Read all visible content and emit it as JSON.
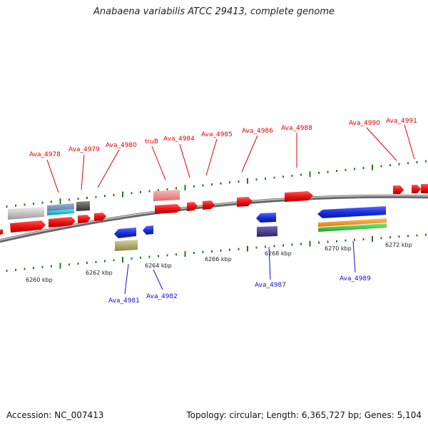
{
  "title": "Anabaena variabilis ATCC 29413, complete genome",
  "footer": {
    "accession": "Accession: NC_007413",
    "summary": "Topology: circular; Length: 6,365,727 bp; Genes: 5,104"
  },
  "colors": {
    "forward_gene": "#ee1010",
    "reverse_gene": "#1830e0",
    "forward_label": "#e00000",
    "reverse_label": "#1010c8",
    "tick": "#1f7a1f",
    "backbone": "#8a8a8a"
  },
  "ticks": [
    {
      "label": "6260 kbp"
    },
    {
      "label": "6262 kbp"
    },
    {
      "label": "6264 kbp"
    },
    {
      "label": "6266 kbp"
    },
    {
      "label": "6268 kbp"
    },
    {
      "label": "6270 kbp"
    },
    {
      "label": "6272 kbp"
    }
  ],
  "gene_labels_forward": [
    {
      "name": "Ava_4978"
    },
    {
      "name": "Ava_4979"
    },
    {
      "name": "Ava_4980"
    },
    {
      "name": "truB"
    },
    {
      "name": "Ava_4984"
    },
    {
      "name": "Ava_4985"
    },
    {
      "name": "Ava_4986"
    },
    {
      "name": "Ava_4988"
    },
    {
      "name": "Ava_4990"
    },
    {
      "name": "Ava_4991"
    }
  ],
  "gene_labels_reverse": [
    {
      "name": "Ava_4981"
    },
    {
      "name": "Ava_4982"
    },
    {
      "name": "Ava_4987"
    },
    {
      "name": "Ava_4989"
    }
  ]
}
